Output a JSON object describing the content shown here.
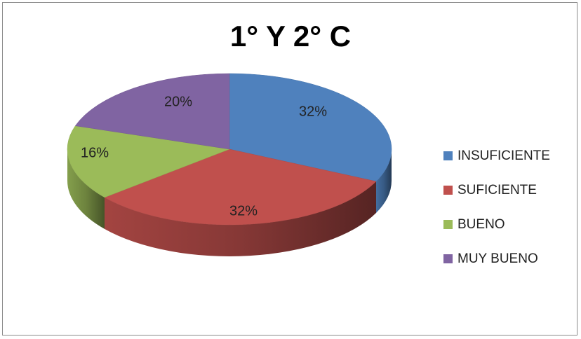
{
  "chart_data": {
    "type": "pie",
    "title": "1° Y 2° C",
    "categories": [
      "INSUFICIENTE",
      "SUFICIENTE",
      "BUENO",
      "MUY BUENO"
    ],
    "values": [
      32,
      32,
      16,
      20
    ],
    "labels": [
      "32%",
      "32%",
      "16%",
      "20%"
    ],
    "colors": [
      "#4f81bd",
      "#c0504d",
      "#9bbb59",
      "#8064a2"
    ],
    "legend_position": "right"
  }
}
